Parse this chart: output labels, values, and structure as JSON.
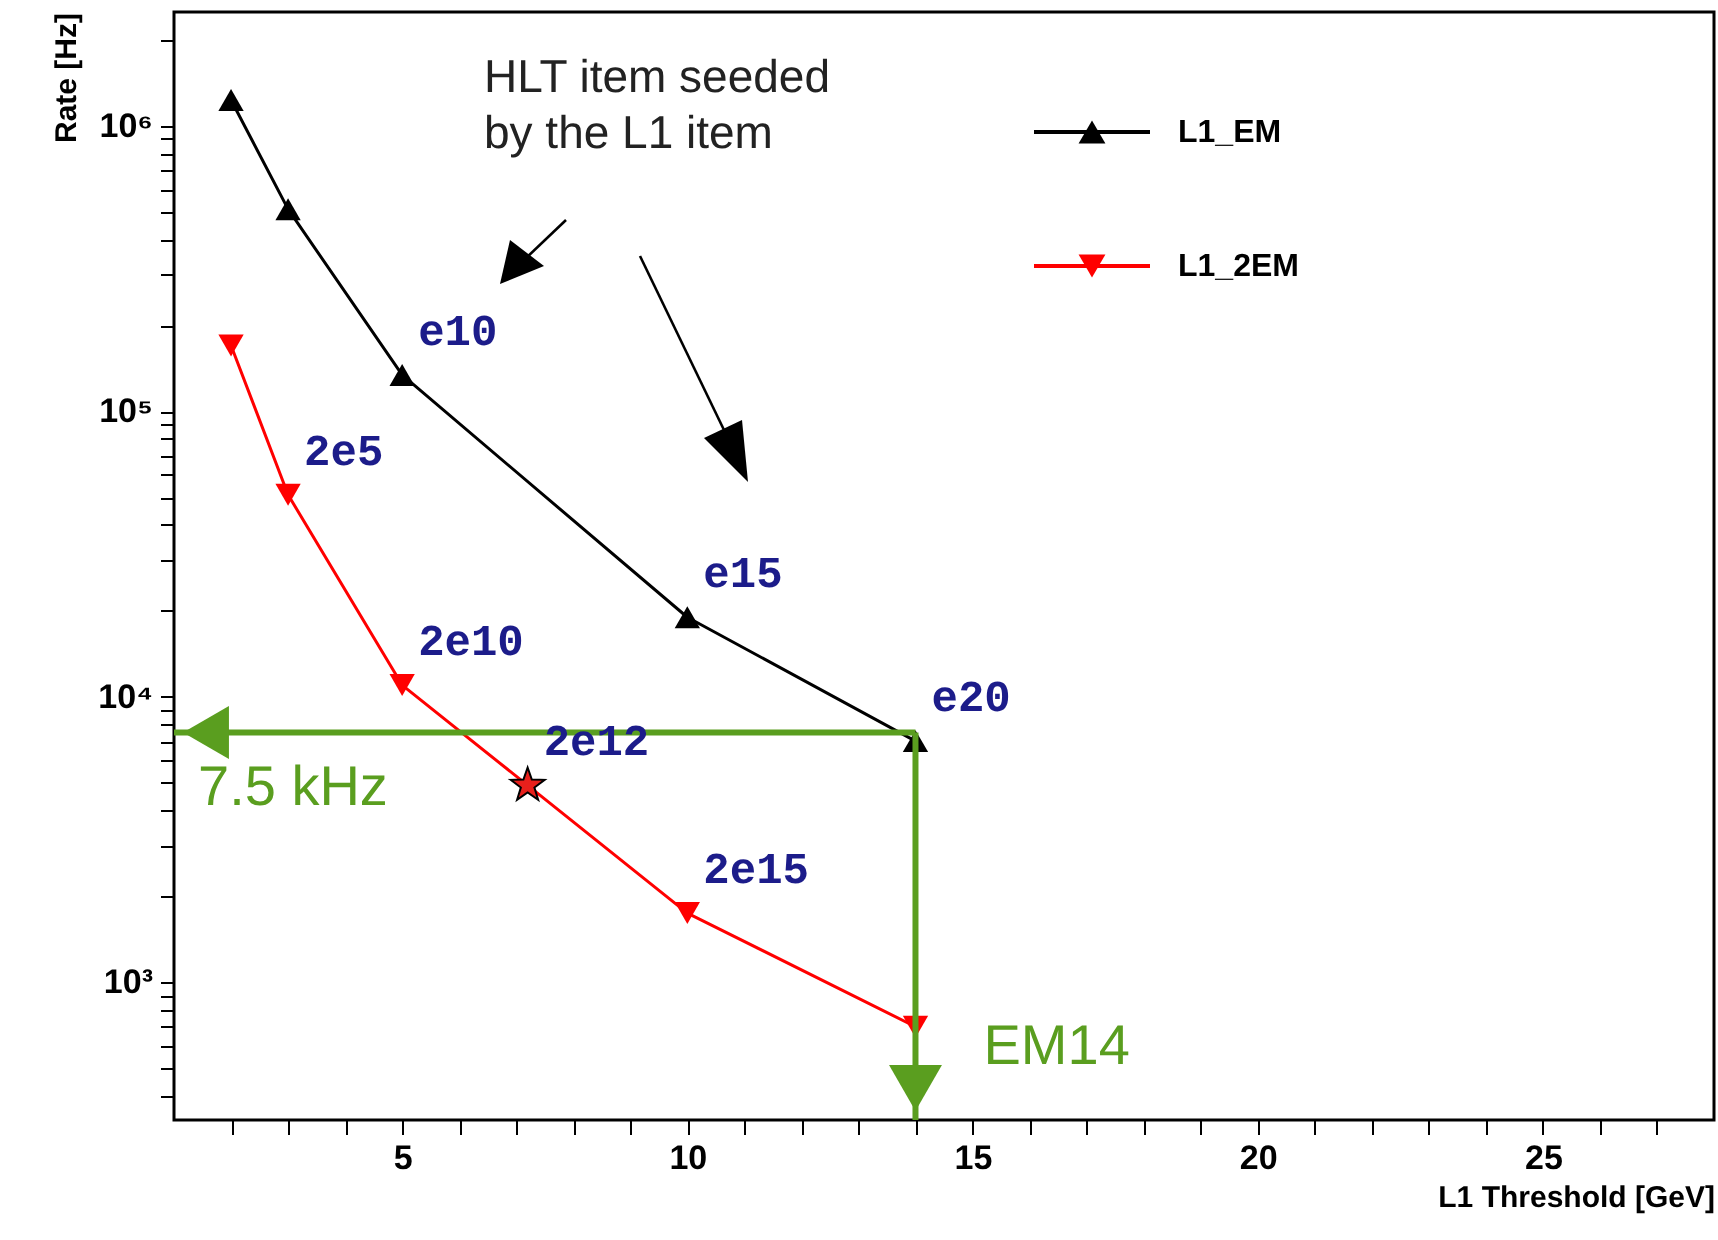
{
  "chart_data": {
    "type": "line",
    "xlabel": "L1 Threshold [GeV]",
    "ylabel": "Rate [Hz]",
    "log": "y",
    "grid": false,
    "legend": "top right",
    "xlim": [
      1,
      28
    ],
    "ylim": [
      330,
      2500000
    ],
    "xticks": [
      {
        "value": 2,
        "label": null
      },
      {
        "value": 3,
        "label": null
      },
      {
        "value": 4,
        "label": null
      },
      5,
      {
        "value": 6,
        "label": null
      },
      {
        "value": 7,
        "label": null
      },
      {
        "value": 8,
        "label": null
      },
      {
        "value": 9,
        "label": null
      },
      10,
      {
        "value": 11,
        "label": null
      },
      {
        "value": 12,
        "label": null
      },
      {
        "value": 13,
        "label": null
      },
      {
        "value": 14,
        "label": null
      },
      15,
      {
        "value": 16,
        "label": null
      },
      {
        "value": 17,
        "label": null
      },
      {
        "value": 18,
        "label": null
      },
      {
        "value": 19,
        "label": null
      },
      20,
      {
        "value": 21,
        "label": null
      },
      {
        "value": 22,
        "label": null
      },
      {
        "value": 23,
        "label": null
      },
      {
        "value": 24,
        "label": null
      },
      25,
      {
        "value": 26,
        "label": null
      },
      {
        "value": 27,
        "label": null
      }
    ],
    "yticks": [
      {
        "value": 400,
        "label": null
      },
      {
        "value": 500,
        "label": null
      },
      {
        "value": 600,
        "label": null
      },
      {
        "value": 700,
        "label": null
      },
      {
        "value": 800,
        "label": null
      },
      {
        "value": 900,
        "label": null
      },
      {
        "value": 1000,
        "label": "10³"
      },
      {
        "value": 2000,
        "label": null
      },
      {
        "value": 3000,
        "label": null
      },
      {
        "value": 4000,
        "label": null
      },
      {
        "value": 5000,
        "label": null
      },
      {
        "value": 6000,
        "label": null
      },
      {
        "value": 7000,
        "label": null
      },
      {
        "value": 8000,
        "label": null
      },
      {
        "value": 9000,
        "label": null
      },
      {
        "value": 10000,
        "label": "10⁴"
      },
      {
        "value": 20000,
        "label": null
      },
      {
        "value": 30000,
        "label": null
      },
      {
        "value": 40000,
        "label": null
      },
      {
        "value": 50000,
        "label": null
      },
      {
        "value": 60000,
        "label": null
      },
      {
        "value": 70000,
        "label": null
      },
      {
        "value": 80000,
        "label": null
      },
      {
        "value": 90000,
        "label": null
      },
      {
        "value": 100000,
        "label": "10⁵"
      },
      {
        "value": 200000,
        "label": null
      },
      {
        "value": 300000,
        "label": null
      },
      {
        "value": 400000,
        "label": null
      },
      {
        "value": 500000,
        "label": null
      },
      {
        "value": 600000,
        "label": null
      },
      {
        "value": 700000,
        "label": null
      },
      {
        "value": 800000,
        "label": null
      },
      {
        "value": 900000,
        "label": null
      },
      {
        "value": 1000000,
        "label": "10⁶"
      },
      {
        "value": 2000000,
        "label": null
      }
    ],
    "series": [
      {
        "name": "L1_EM",
        "color": "#000000",
        "marker": "triangle",
        "x": [
          2,
          3,
          5,
          10,
          14
        ],
        "values": [
          1230000,
          510000,
          134000,
          19000,
          7000
        ]
      },
      {
        "name": "L1_2EM",
        "color": "#ff0000",
        "marker": "triangle-down",
        "x": [
          2,
          3,
          5,
          10,
          14
        ],
        "values": [
          170000,
          51000,
          11000,
          1750,
          700
        ]
      },
      {
        "type": "scatter",
        "color": "#e8201c",
        "marker": "star",
        "x": [
          7.2
        ],
        "values": [
          4900
        ]
      }
    ],
    "ref_lines": [
      {
        "axis": "y",
        "value": 7500,
        "label": "7.5 kHz",
        "color": "#5a9e1f"
      },
      {
        "axis": "x",
        "value": 14,
        "label": "EM14",
        "color": "#5a9e1f"
      }
    ],
    "annotations": [
      "HLT item seeded\nby the L1 item",
      {
        "text": "e10",
        "x": 5,
        "y": 134000
      },
      {
        "text": "e15",
        "x": 10,
        "y": 19000
      },
      {
        "text": "e20",
        "x": 14,
        "y": 7000
      },
      {
        "text": "2e5",
        "x": 3,
        "y": 51000
      },
      {
        "text": "2e10",
        "x": 5,
        "y": 11000
      },
      {
        "text": "2e12",
        "x": 7.2,
        "y": 4900
      },
      {
        "text": "2e15",
        "x": 10,
        "y": 1750
      }
    ]
  }
}
